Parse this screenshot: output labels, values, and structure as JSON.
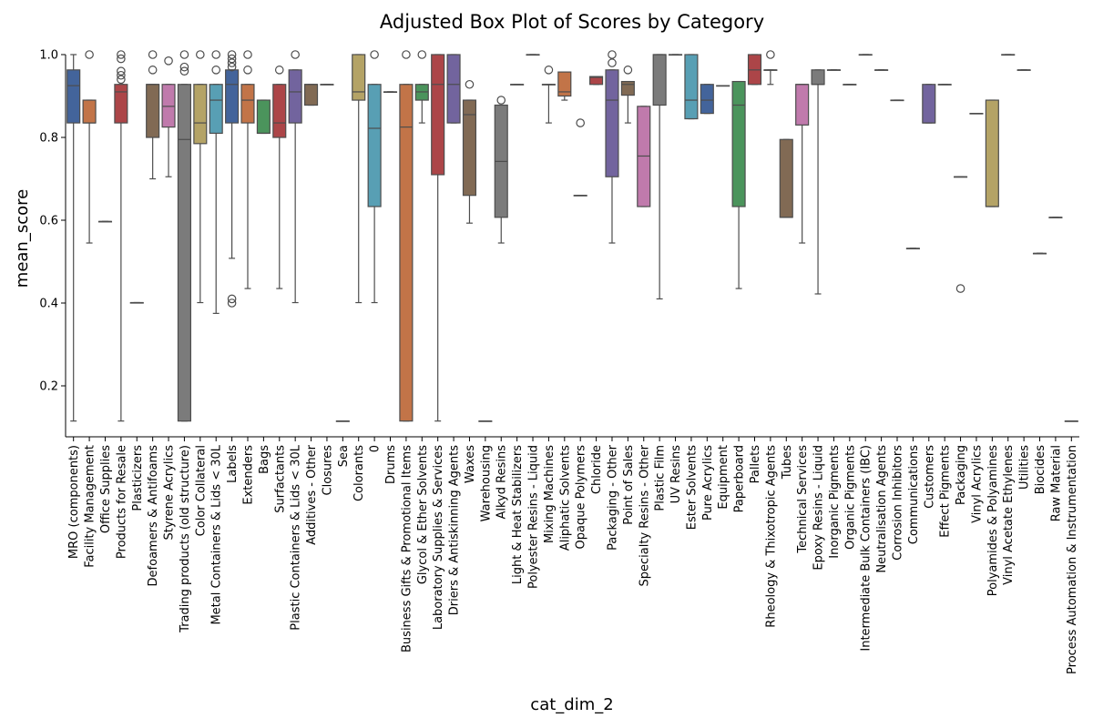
{
  "chart_data": {
    "type": "box",
    "title": "Adjusted Box Plot of Scores by Category",
    "xlabel": "cat_dim_2",
    "ylabel": "mean_score",
    "ylim": [
      0.08,
      1.0
    ],
    "yticks": [
      0.2,
      0.4,
      0.6,
      0.8,
      1.0
    ],
    "ytick_labels": [
      "0.2",
      "0.4",
      "0.6",
      "0.8",
      "1.0"
    ],
    "grid": false,
    "categories": [
      {
        "name": "MRO (components)",
        "color": "#4c72b0",
        "whislo": 0.115,
        "q1": 0.835,
        "med": 0.925,
        "q3": 0.963,
        "whishi": 1.0,
        "fliers": []
      },
      {
        "name": "Facility Management",
        "color": "#dd8452",
        "whislo": 0.545,
        "q1": 0.835,
        "med": 0.835,
        "q3": 0.89,
        "whishi": 0.89,
        "fliers": [
          1.0
        ]
      },
      {
        "name": "Office Supplies",
        "color": "#55a868",
        "whislo": 0.597,
        "q1": 0.597,
        "med": 0.597,
        "q3": 0.597,
        "whishi": 0.597,
        "fliers": []
      },
      {
        "name": "Products for Resale",
        "color": "#c44e52",
        "whislo": 0.115,
        "q1": 0.835,
        "med": 0.91,
        "q3": 0.928,
        "whishi": 0.928,
        "fliers": [
          0.94,
          0.95,
          0.96,
          0.99,
          1.0
        ]
      },
      {
        "name": "Plasticizers",
        "color": "#8172b3",
        "whislo": 0.401,
        "q1": 0.401,
        "med": 0.401,
        "q3": 0.401,
        "whishi": 0.401,
        "fliers": []
      },
      {
        "name": "Defoamers & Antifoams",
        "color": "#937860",
        "whislo": 0.7,
        "q1": 0.8,
        "med": 0.928,
        "q3": 0.928,
        "whishi": 0.928,
        "fliers": [
          0.963,
          1.0
        ]
      },
      {
        "name": "Styrene Acrylics",
        "color": "#da8bc3",
        "whislo": 0.705,
        "q1": 0.825,
        "med": 0.875,
        "q3": 0.928,
        "whishi": 0.928,
        "fliers": [
          0.985
        ]
      },
      {
        "name": "Trading products (old structure)",
        "color": "#8c8c8c",
        "whislo": 0.115,
        "q1": 0.115,
        "med": 0.795,
        "q3": 0.928,
        "whishi": 0.928,
        "fliers": [
          0.96,
          0.97,
          1.0
        ]
      },
      {
        "name": "Color Collateral",
        "color": "#ccb974",
        "whislo": 0.401,
        "q1": 0.785,
        "med": 0.835,
        "q3": 0.928,
        "whishi": 0.928,
        "fliers": [
          1.0
        ]
      },
      {
        "name": "Metal Containers & Lids < 30L",
        "color": "#64b5cd",
        "whislo": 0.375,
        "q1": 0.81,
        "med": 0.89,
        "q3": 0.928,
        "whishi": 0.928,
        "fliers": [
          0.963,
          1.0
        ]
      },
      {
        "name": "Labels",
        "color": "#4c72b0",
        "whislo": 0.508,
        "q1": 0.835,
        "med": 0.928,
        "q3": 0.963,
        "whishi": 0.963,
        "fliers": [
          0.4,
          0.41,
          0.97,
          0.98,
          0.99,
          1.0
        ]
      },
      {
        "name": "Extenders",
        "color": "#dd8452",
        "whislo": 0.435,
        "q1": 0.835,
        "med": 0.89,
        "q3": 0.928,
        "whishi": 0.928,
        "fliers": [
          0.963,
          1.0
        ]
      },
      {
        "name": "Bags",
        "color": "#55a868",
        "whislo": 0.81,
        "q1": 0.81,
        "med": 0.81,
        "q3": 0.89,
        "whishi": 0.89,
        "fliers": []
      },
      {
        "name": "Surfactants",
        "color": "#c44e52",
        "whislo": 0.435,
        "q1": 0.8,
        "med": 0.835,
        "q3": 0.928,
        "whishi": 0.928,
        "fliers": [
          0.963
        ]
      },
      {
        "name": "Plastic Containers & Lids < 30L",
        "color": "#8172b3",
        "whislo": 0.401,
        "q1": 0.835,
        "med": 0.91,
        "q3": 0.963,
        "whishi": 0.963,
        "fliers": [
          1.0
        ]
      },
      {
        "name": "Additives - Other",
        "color": "#937860",
        "whislo": 0.878,
        "q1": 0.878,
        "med": 0.928,
        "q3": 0.928,
        "whishi": 0.928,
        "fliers": []
      },
      {
        "name": "Closures",
        "color": "#da8bc3",
        "whislo": 0.928,
        "q1": 0.928,
        "med": 0.928,
        "q3": 0.928,
        "whishi": 0.928,
        "fliers": []
      },
      {
        "name": "Sea",
        "color": "#8c8c8c",
        "whislo": 0.115,
        "q1": 0.115,
        "med": 0.115,
        "q3": 0.115,
        "whishi": 0.115,
        "fliers": []
      },
      {
        "name": "Colorants",
        "color": "#ccb974",
        "whislo": 0.401,
        "q1": 0.89,
        "med": 0.91,
        "q3": 1.0,
        "whishi": 1.0,
        "fliers": []
      },
      {
        "name": "0",
        "color": "#64b5cd",
        "whislo": 0.401,
        "q1": 0.633,
        "med": 0.822,
        "q3": 0.928,
        "whishi": 0.928,
        "fliers": [
          1.0
        ]
      },
      {
        "name": "Drums",
        "color": "#4c72b0",
        "whislo": 0.91,
        "q1": 0.91,
        "med": 0.91,
        "q3": 0.91,
        "whishi": 0.91,
        "fliers": []
      },
      {
        "name": "Business Gifts & Promotional Items",
        "color": "#dd8452",
        "whislo": 0.115,
        "q1": 0.115,
        "med": 0.825,
        "q3": 0.928,
        "whishi": 0.928,
        "fliers": [
          1.0
        ]
      },
      {
        "name": "Glycol & Ether Solvents",
        "color": "#55a868",
        "whislo": 0.835,
        "q1": 0.89,
        "med": 0.91,
        "q3": 0.928,
        "whishi": 0.928,
        "fliers": [
          1.0
        ]
      },
      {
        "name": "Laboratory Supplies & Services",
        "color": "#c44e52",
        "whislo": 0.115,
        "q1": 0.71,
        "med": 0.928,
        "q3": 1.0,
        "whishi": 1.0,
        "fliers": []
      },
      {
        "name": "Driers & Antiskinning Agents",
        "color": "#8172b3",
        "whislo": 0.835,
        "q1": 0.835,
        "med": 0.928,
        "q3": 1.0,
        "whishi": 1.0,
        "fliers": []
      },
      {
        "name": "Waxes",
        "color": "#937860",
        "whislo": 0.593,
        "q1": 0.66,
        "med": 0.855,
        "q3": 0.89,
        "whishi": 0.89,
        "fliers": [
          0.928
        ]
      },
      {
        "name": "Warehousing",
        "color": "#da8bc3",
        "whislo": 0.115,
        "q1": 0.115,
        "med": 0.115,
        "q3": 0.115,
        "whishi": 0.115,
        "fliers": []
      },
      {
        "name": "Alkyd Resins",
        "color": "#8c8c8c",
        "whislo": 0.545,
        "q1": 0.607,
        "med": 0.742,
        "q3": 0.878,
        "whishi": 0.878,
        "fliers": [
          0.89
        ]
      },
      {
        "name": "Light & Heat Stabilizers",
        "color": "#ccb974",
        "whislo": 0.928,
        "q1": 0.928,
        "med": 0.928,
        "q3": 0.928,
        "whishi": 0.928,
        "fliers": []
      },
      {
        "name": "Polyester Resins - Liquid",
        "color": "#64b5cd",
        "whislo": 1.0,
        "q1": 1.0,
        "med": 1.0,
        "q3": 1.0,
        "whishi": 1.0,
        "fliers": []
      },
      {
        "name": "Mixing Machines",
        "color": "#4c72b0",
        "whislo": 0.835,
        "q1": 0.928,
        "med": 0.928,
        "q3": 0.928,
        "whishi": 0.928,
        "fliers": [
          0.963
        ]
      },
      {
        "name": "Aliphatic Solvents",
        "color": "#dd8452",
        "whislo": 0.89,
        "q1": 0.9,
        "med": 0.91,
        "q3": 0.958,
        "whishi": 0.958,
        "fliers": []
      },
      {
        "name": "Opaque Polymers",
        "color": "#55a868",
        "whislo": 0.66,
        "q1": 0.66,
        "med": 0.66,
        "q3": 0.66,
        "whishi": 0.66,
        "fliers": [
          0.835
        ]
      },
      {
        "name": "Chloride",
        "color": "#c44e52",
        "whislo": 0.928,
        "q1": 0.928,
        "med": 0.945,
        "q3": 0.947,
        "whishi": 0.947,
        "fliers": []
      },
      {
        "name": "Packaging - Other",
        "color": "#8172b3",
        "whislo": 0.545,
        "q1": 0.705,
        "med": 0.89,
        "q3": 0.963,
        "whishi": 0.963,
        "fliers": [
          0.98,
          1.0
        ]
      },
      {
        "name": "Point of Sales",
        "color": "#937860",
        "whislo": 0.835,
        "q1": 0.902,
        "med": 0.928,
        "q3": 0.935,
        "whishi": 0.935,
        "fliers": [
          0.963
        ]
      },
      {
        "name": "Specialty Resins - Other",
        "color": "#da8bc3",
        "whislo": 0.633,
        "q1": 0.633,
        "med": 0.755,
        "q3": 0.875,
        "whishi": 0.875,
        "fliers": []
      },
      {
        "name": "Plastic Film",
        "color": "#8c8c8c",
        "whislo": 0.41,
        "q1": 0.878,
        "med": 1.0,
        "q3": 1.0,
        "whishi": 1.0,
        "fliers": []
      },
      {
        "name": "UV Resins",
        "color": "#ccb974",
        "whislo": 1.0,
        "q1": 1.0,
        "med": 1.0,
        "q3": 1.0,
        "whishi": 1.0,
        "fliers": []
      },
      {
        "name": "Ester Solvents",
        "color": "#64b5cd",
        "whislo": 0.845,
        "q1": 0.845,
        "med": 0.89,
        "q3": 1.0,
        "whishi": 1.0,
        "fliers": []
      },
      {
        "name": "Pure Acrylics",
        "color": "#4c72b0",
        "whislo": 0.858,
        "q1": 0.858,
        "med": 0.89,
        "q3": 0.928,
        "whishi": 0.928,
        "fliers": []
      },
      {
        "name": "Equipment",
        "color": "#dd8452",
        "whislo": 0.925,
        "q1": 0.925,
        "med": 0.925,
        "q3": 0.925,
        "whishi": 0.925,
        "fliers": []
      },
      {
        "name": "Paperboard",
        "color": "#55a868",
        "whislo": 0.435,
        "q1": 0.633,
        "med": 0.878,
        "q3": 0.935,
        "whishi": 0.935,
        "fliers": []
      },
      {
        "name": "Pallets",
        "color": "#c44e52",
        "whislo": 0.928,
        "q1": 0.928,
        "med": 0.963,
        "q3": 1.0,
        "whishi": 1.0,
        "fliers": []
      },
      {
        "name": "Rheology & Thixotropic Agents",
        "color": "#8172b3",
        "whislo": 0.928,
        "q1": 0.963,
        "med": 0.963,
        "q3": 0.963,
        "whishi": 0.963,
        "fliers": [
          1.0
        ]
      },
      {
        "name": "Tubes",
        "color": "#937860",
        "whislo": 0.607,
        "q1": 0.607,
        "med": 0.607,
        "q3": 0.795,
        "whishi": 0.795,
        "fliers": []
      },
      {
        "name": "Technical Services",
        "color": "#da8bc3",
        "whislo": 0.545,
        "q1": 0.83,
        "med": 0.928,
        "q3": 0.928,
        "whishi": 0.928,
        "fliers": []
      },
      {
        "name": "Epoxy Resins - Liquid",
        "color": "#8c8c8c",
        "whislo": 0.422,
        "q1": 0.928,
        "med": 0.928,
        "q3": 0.963,
        "whishi": 0.963,
        "fliers": []
      },
      {
        "name": "Inorganic Pigments",
        "color": "#ccb974",
        "whislo": 0.963,
        "q1": 0.963,
        "med": 0.963,
        "q3": 0.963,
        "whishi": 0.963,
        "fliers": []
      },
      {
        "name": "Organic Pigments",
        "color": "#64b5cd",
        "whislo": 0.928,
        "q1": 0.928,
        "med": 0.928,
        "q3": 0.928,
        "whishi": 0.928,
        "fliers": []
      },
      {
        "name": "Intermediate Bulk Containers (IBC)",
        "color": "#4c72b0",
        "whislo": 1.0,
        "q1": 1.0,
        "med": 1.0,
        "q3": 1.0,
        "whishi": 1.0,
        "fliers": []
      },
      {
        "name": "Neutralisation Agents",
        "color": "#dd8452",
        "whislo": 0.963,
        "q1": 0.963,
        "med": 0.963,
        "q3": 0.963,
        "whishi": 0.963,
        "fliers": []
      },
      {
        "name": "Corrosion Inhibitors",
        "color": "#55a868",
        "whislo": 0.89,
        "q1": 0.89,
        "med": 0.89,
        "q3": 0.89,
        "whishi": 0.89,
        "fliers": []
      },
      {
        "name": "Communications",
        "color": "#c44e52",
        "whislo": 0.532,
        "q1": 0.532,
        "med": 0.532,
        "q3": 0.532,
        "whishi": 0.532,
        "fliers": []
      },
      {
        "name": "Customers",
        "color": "#8172b3",
        "whislo": 0.835,
        "q1": 0.835,
        "med": 0.835,
        "q3": 0.928,
        "whishi": 0.928,
        "fliers": []
      },
      {
        "name": "Effect Pigments",
        "color": "#937860",
        "whislo": 0.928,
        "q1": 0.928,
        "med": 0.928,
        "q3": 0.928,
        "whishi": 0.928,
        "fliers": []
      },
      {
        "name": "Packaging",
        "color": "#da8bc3",
        "whislo": 0.705,
        "q1": 0.705,
        "med": 0.705,
        "q3": 0.705,
        "whishi": 0.705,
        "fliers": [
          0.435
        ]
      },
      {
        "name": "Vinyl Acrylics",
        "color": "#8c8c8c",
        "whislo": 0.858,
        "q1": 0.858,
        "med": 0.858,
        "q3": 0.858,
        "whishi": 0.858,
        "fliers": []
      },
      {
        "name": "Polyamides & Polyamines",
        "color": "#ccb974",
        "whislo": 0.633,
        "q1": 0.633,
        "med": 0.633,
        "q3": 0.89,
        "whishi": 0.89,
        "fliers": []
      },
      {
        "name": "Vinyl Acetate Ethylenes",
        "color": "#64b5cd",
        "whislo": 1.0,
        "q1": 1.0,
        "med": 1.0,
        "q3": 1.0,
        "whishi": 1.0,
        "fliers": []
      },
      {
        "name": "Utilities",
        "color": "#4c72b0",
        "whislo": 0.963,
        "q1": 0.963,
        "med": 0.963,
        "q3": 0.963,
        "whishi": 0.963,
        "fliers": []
      },
      {
        "name": "Biocides",
        "color": "#dd8452",
        "whislo": 0.52,
        "q1": 0.52,
        "med": 0.52,
        "q3": 0.52,
        "whishi": 0.52,
        "fliers": []
      },
      {
        "name": "Raw Material",
        "color": "#55a868",
        "whislo": 0.607,
        "q1": 0.607,
        "med": 0.607,
        "q3": 0.607,
        "whishi": 0.607,
        "fliers": []
      },
      {
        "name": "Process Automation & Instrumentation",
        "color": "#c44e52",
        "whislo": 0.115,
        "q1": 0.115,
        "med": 0.115,
        "q3": 0.115,
        "whishi": 0.115,
        "fliers": []
      }
    ]
  }
}
